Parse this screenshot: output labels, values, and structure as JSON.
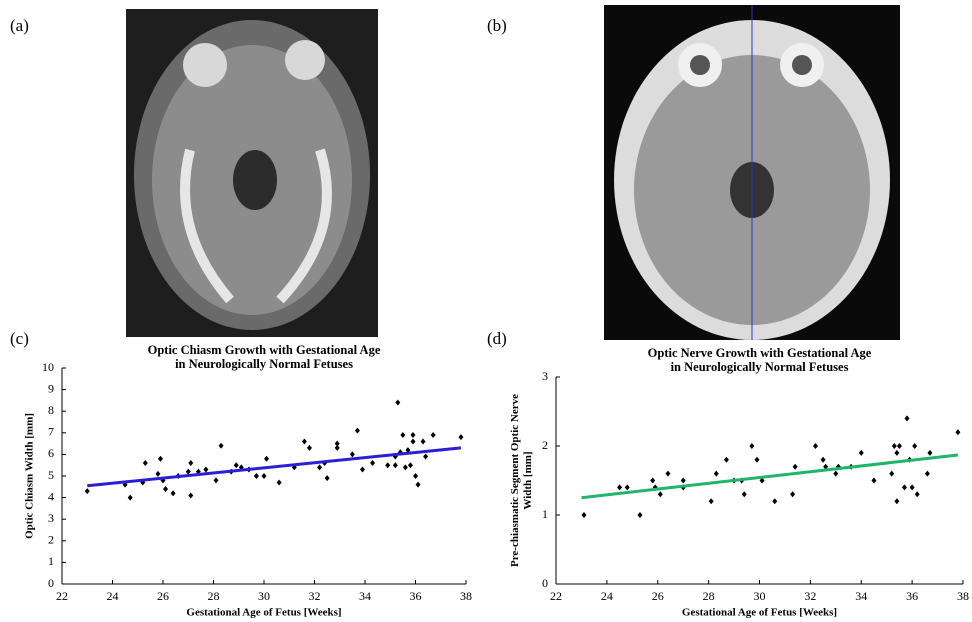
{
  "panel_labels": [
    "(a)",
    "(b)",
    "(c)",
    "(d)"
  ],
  "chart_data": [
    {
      "type": "scatter",
      "title": [
        "Optic Chiasm Growth with Gestational Age",
        "in Neurologically Normal Fetuses"
      ],
      "xlabel": "Gestational Age of Fetus [Weeks]",
      "ylabel": [
        "Optic Chiasm Width [mm]"
      ],
      "xlim": [
        22,
        38
      ],
      "xticks": [
        22,
        24,
        26,
        28,
        30,
        32,
        34,
        36,
        38
      ],
      "ylim": [
        0,
        10
      ],
      "yticks": [
        0,
        1,
        2,
        3,
        4,
        5,
        6,
        7,
        8,
        9,
        10
      ],
      "color": "#000000",
      "x": [
        23.0,
        24.5,
        24.7,
        25.2,
        25.3,
        25.8,
        25.9,
        26.0,
        26.1,
        26.4,
        26.6,
        27.0,
        27.1,
        27.1,
        27.4,
        27.7,
        28.1,
        28.3,
        28.7,
        28.9,
        29.1,
        29.4,
        29.7,
        30.0,
        30.1,
        30.6,
        31.2,
        31.6,
        31.8,
        32.2,
        32.5,
        32.4,
        32.9,
        32.9,
        33.5,
        33.7,
        33.9,
        34.3,
        34.9,
        35.3,
        35.2,
        35.4,
        35.5,
        35.6,
        35.7,
        35.8,
        35.9,
        36.0,
        36.1,
        36.3,
        36.4,
        36.7,
        37.8,
        35.9,
        35.2
      ],
      "values": [
        4.3,
        4.6,
        4.0,
        4.7,
        5.6,
        5.1,
        5.8,
        4.8,
        4.4,
        4.2,
        5.0,
        5.2,
        4.1,
        5.6,
        5.2,
        5.3,
        4.8,
        6.4,
        5.2,
        5.5,
        5.4,
        5.3,
        5.0,
        5.0,
        5.8,
        4.7,
        5.4,
        6.6,
        6.3,
        5.4,
        4.9,
        5.6,
        6.3,
        6.5,
        6.0,
        7.1,
        5.3,
        5.6,
        5.5,
        8.4,
        5.9,
        6.1,
        6.9,
        5.4,
        6.2,
        5.5,
        6.6,
        5.0,
        4.6,
        6.6,
        5.9,
        6.9,
        6.8,
        6.9,
        5.5
      ],
      "fit_line": {
        "x": [
          23.0,
          37.8
        ],
        "values": [
          4.55,
          6.3
        ],
        "color": "#2a1fd6"
      }
    },
    {
      "type": "scatter",
      "title": [
        "Optic Nerve Growth with Gestational Age",
        "in Neurologically Normal Fetuses"
      ],
      "xlabel": "Gestational Age of Fetus [Weeks]",
      "ylabel": [
        "Pre-chiasmatic Segment Optic Nerve",
        "Width [mm]"
      ],
      "xlim": [
        22,
        38
      ],
      "xticks": [
        22,
        24,
        26,
        28,
        30,
        32,
        34,
        36,
        38
      ],
      "ylim": [
        0,
        3
      ],
      "yticks": [
        0,
        1,
        2,
        3
      ],
      "color": "#000000",
      "x": [
        23.1,
        24.5,
        24.8,
        25.3,
        25.8,
        25.9,
        26.1,
        26.4,
        27.0,
        27.0,
        28.1,
        28.3,
        28.7,
        29.0,
        29.3,
        29.4,
        29.7,
        29.9,
        30.1,
        30.6,
        31.3,
        31.4,
        32.2,
        32.5,
        32.6,
        33.0,
        33.1,
        33.6,
        34.0,
        34.5,
        35.2,
        35.3,
        35.4,
        35.4,
        35.5,
        35.7,
        35.8,
        35.9,
        36.0,
        36.1,
        36.2,
        36.6,
        36.7,
        37.8
      ],
      "values": [
        1.0,
        1.4,
        1.4,
        1.0,
        1.5,
        1.4,
        1.3,
        1.6,
        1.4,
        1.5,
        1.2,
        1.6,
        1.8,
        1.5,
        1.5,
        1.3,
        2.0,
        1.8,
        1.5,
        1.2,
        1.3,
        1.7,
        2.0,
        1.8,
        1.7,
        1.6,
        1.7,
        1.7,
        1.9,
        1.5,
        1.6,
        2.0,
        1.9,
        1.2,
        2.0,
        1.4,
        2.4,
        1.8,
        1.4,
        2.0,
        1.3,
        1.6,
        1.9,
        2.2
      ],
      "fit_line": {
        "x": [
          23.0,
          37.8
        ],
        "values": [
          1.25,
          1.87
        ],
        "color": "#1fb56a"
      }
    }
  ]
}
